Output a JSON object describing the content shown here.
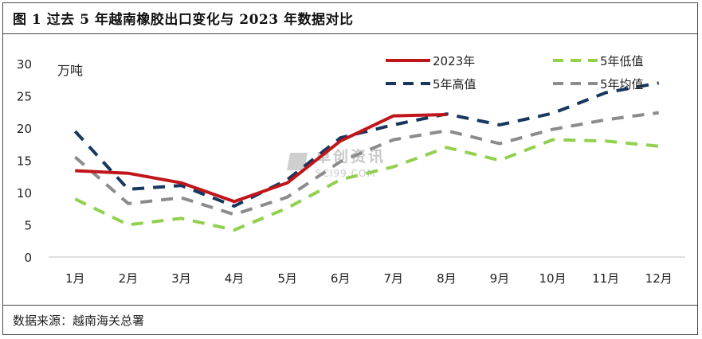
{
  "header": {
    "title": "图 1  过去 5 年越南橡胶出口变化与 2023 年数据对比"
  },
  "footer": {
    "source": "数据来源：越南海关总署"
  },
  "watermark": {
    "name": "卓创资讯",
    "url": "SCI99.COM"
  },
  "chart_data": {
    "type": "line",
    "title": "图 1  过去 5 年越南橡胶出口变化与 2023 年数据对比",
    "unit_label": "万吨",
    "xlabel": "",
    "ylabel": "",
    "categories": [
      "1月",
      "2月",
      "3月",
      "4月",
      "5月",
      "6月",
      "7月",
      "8月",
      "9月",
      "10月",
      "11月",
      "12月"
    ],
    "ylim": [
      0,
      30
    ],
    "yticks": [
      0,
      5,
      10,
      15,
      20,
      25,
      30
    ],
    "grid": false,
    "legend_position": "top-right",
    "series": [
      {
        "name": "2023年",
        "color": "#c0161b",
        "dash": "solid",
        "values": [
          13.4,
          13.0,
          11.5,
          8.6,
          11.5,
          18.0,
          21.9,
          22.1,
          null,
          null,
          null,
          null
        ]
      },
      {
        "name": "5年低值",
        "color": "#92d050",
        "dash": "dash",
        "values": [
          9.0,
          5.0,
          6.0,
          4.2,
          7.6,
          12.0,
          14.0,
          17.0,
          15.0,
          18.2,
          18.0,
          17.2
        ]
      },
      {
        "name": "5年高值",
        "color": "#17375e",
        "dash": "dash",
        "values": [
          19.5,
          10.5,
          11.1,
          7.9,
          12.0,
          18.5,
          20.5,
          22.2,
          20.5,
          22.3,
          25.5,
          27.0
        ]
      },
      {
        "name": "5年均值",
        "color": "#8c8c8c",
        "dash": "dash",
        "values": [
          15.5,
          8.3,
          9.2,
          6.6,
          9.3,
          14.8,
          18.2,
          19.6,
          17.6,
          19.8,
          21.3,
          22.4
        ]
      }
    ]
  }
}
